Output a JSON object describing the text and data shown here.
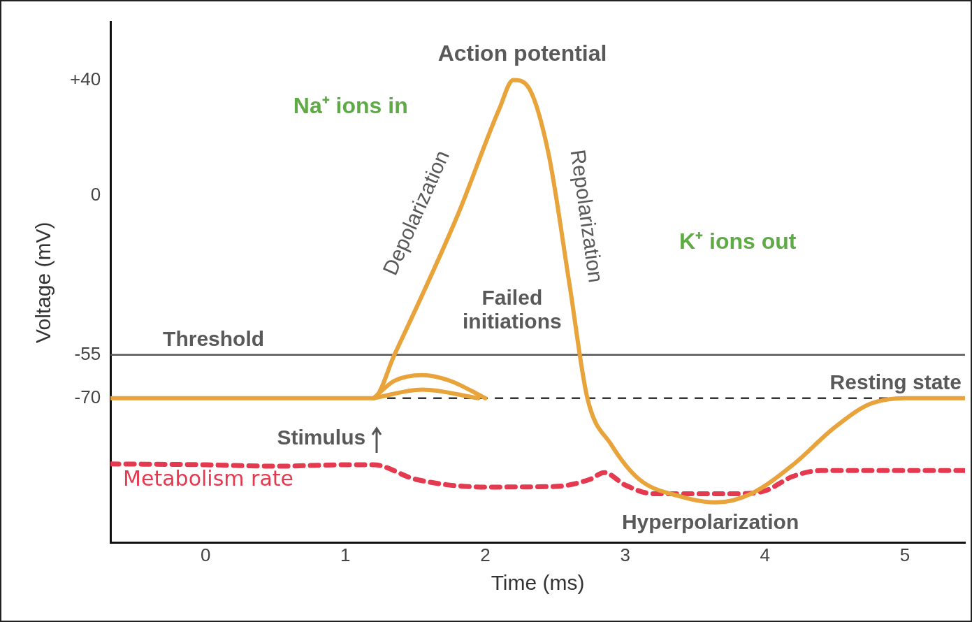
{
  "chart_data": {
    "type": "line",
    "xlabel": "Time (ms)",
    "ylabel": "Voltage (mV)",
    "xlim": [
      -0.68,
      5.43
    ],
    "xticks": [
      0,
      1,
      2,
      3,
      4,
      5
    ],
    "ylim": [
      -120,
      60
    ],
    "yticks": [
      {
        "value": 40,
        "label": "+40"
      },
      0,
      -55,
      -70
    ],
    "grid": false,
    "legend": false,
    "marker": "none",
    "series": [
      {
        "color": "#e8a33a",
        "line_style": "solid",
        "x": [
          -0.68,
          1.2,
          1.35,
          1.8,
          2.1,
          2.2,
          2.3,
          2.45,
          2.6,
          2.73,
          2.9,
          3.1,
          3.4,
          3.65,
          3.9,
          4.2,
          4.5,
          4.75,
          5.0,
          5.43
        ],
        "values": [
          -70,
          -70,
          -55,
          -7,
          30,
          40,
          38,
          15,
          -30,
          -70,
          -86,
          -98,
          -104,
          -106,
          -103,
          -93,
          -80,
          -72,
          -70,
          -70
        ]
      },
      {
        "color": "#e8a33a",
        "line_style": "solid",
        "x": [
          1.2,
          1.35,
          1.55,
          1.75,
          2.0
        ],
        "values": [
          -70,
          -64,
          -62,
          -64,
          -70
        ]
      },
      {
        "color": "#e8a33a",
        "line_style": "solid",
        "x": [
          1.2,
          1.55,
          1.95
        ],
        "values": [
          -70,
          -67,
          -70
        ]
      },
      {
        "name": "Metabolism rate",
        "color": "#e5394f",
        "line_style": "dashed",
        "x": [
          -0.68,
          0,
          0.5,
          1.0,
          1.2,
          1.5,
          2.0,
          2.5,
          2.75,
          2.85,
          3.0,
          3.2,
          3.5,
          3.8,
          4.0,
          4.2,
          4.4,
          4.8,
          5.43
        ],
        "values": [
          -92.7,
          -93,
          -93.5,
          -93,
          -93,
          -98,
          -100.7,
          -100.5,
          -98,
          -95.7,
          -100,
          -103,
          -103,
          -103,
          -102,
          -97,
          -95,
          -95,
          -95
        ]
      }
    ],
    "ref_lines": [
      {
        "axis": "y",
        "value": -55,
        "label": "Threshold",
        "color": "#555555",
        "line_style": "solid"
      },
      {
        "axis": "y",
        "value": -70,
        "label": "Resting state",
        "color": "#333333",
        "line_style": "dashed"
      }
    ],
    "annotations": [
      "Action potential",
      "Na⁺ ions in",
      "Depolarization",
      "Repolarization",
      "K⁺ ions out",
      "Failed initiations",
      "Stimulus",
      "Hyperpolarization"
    ]
  }
}
